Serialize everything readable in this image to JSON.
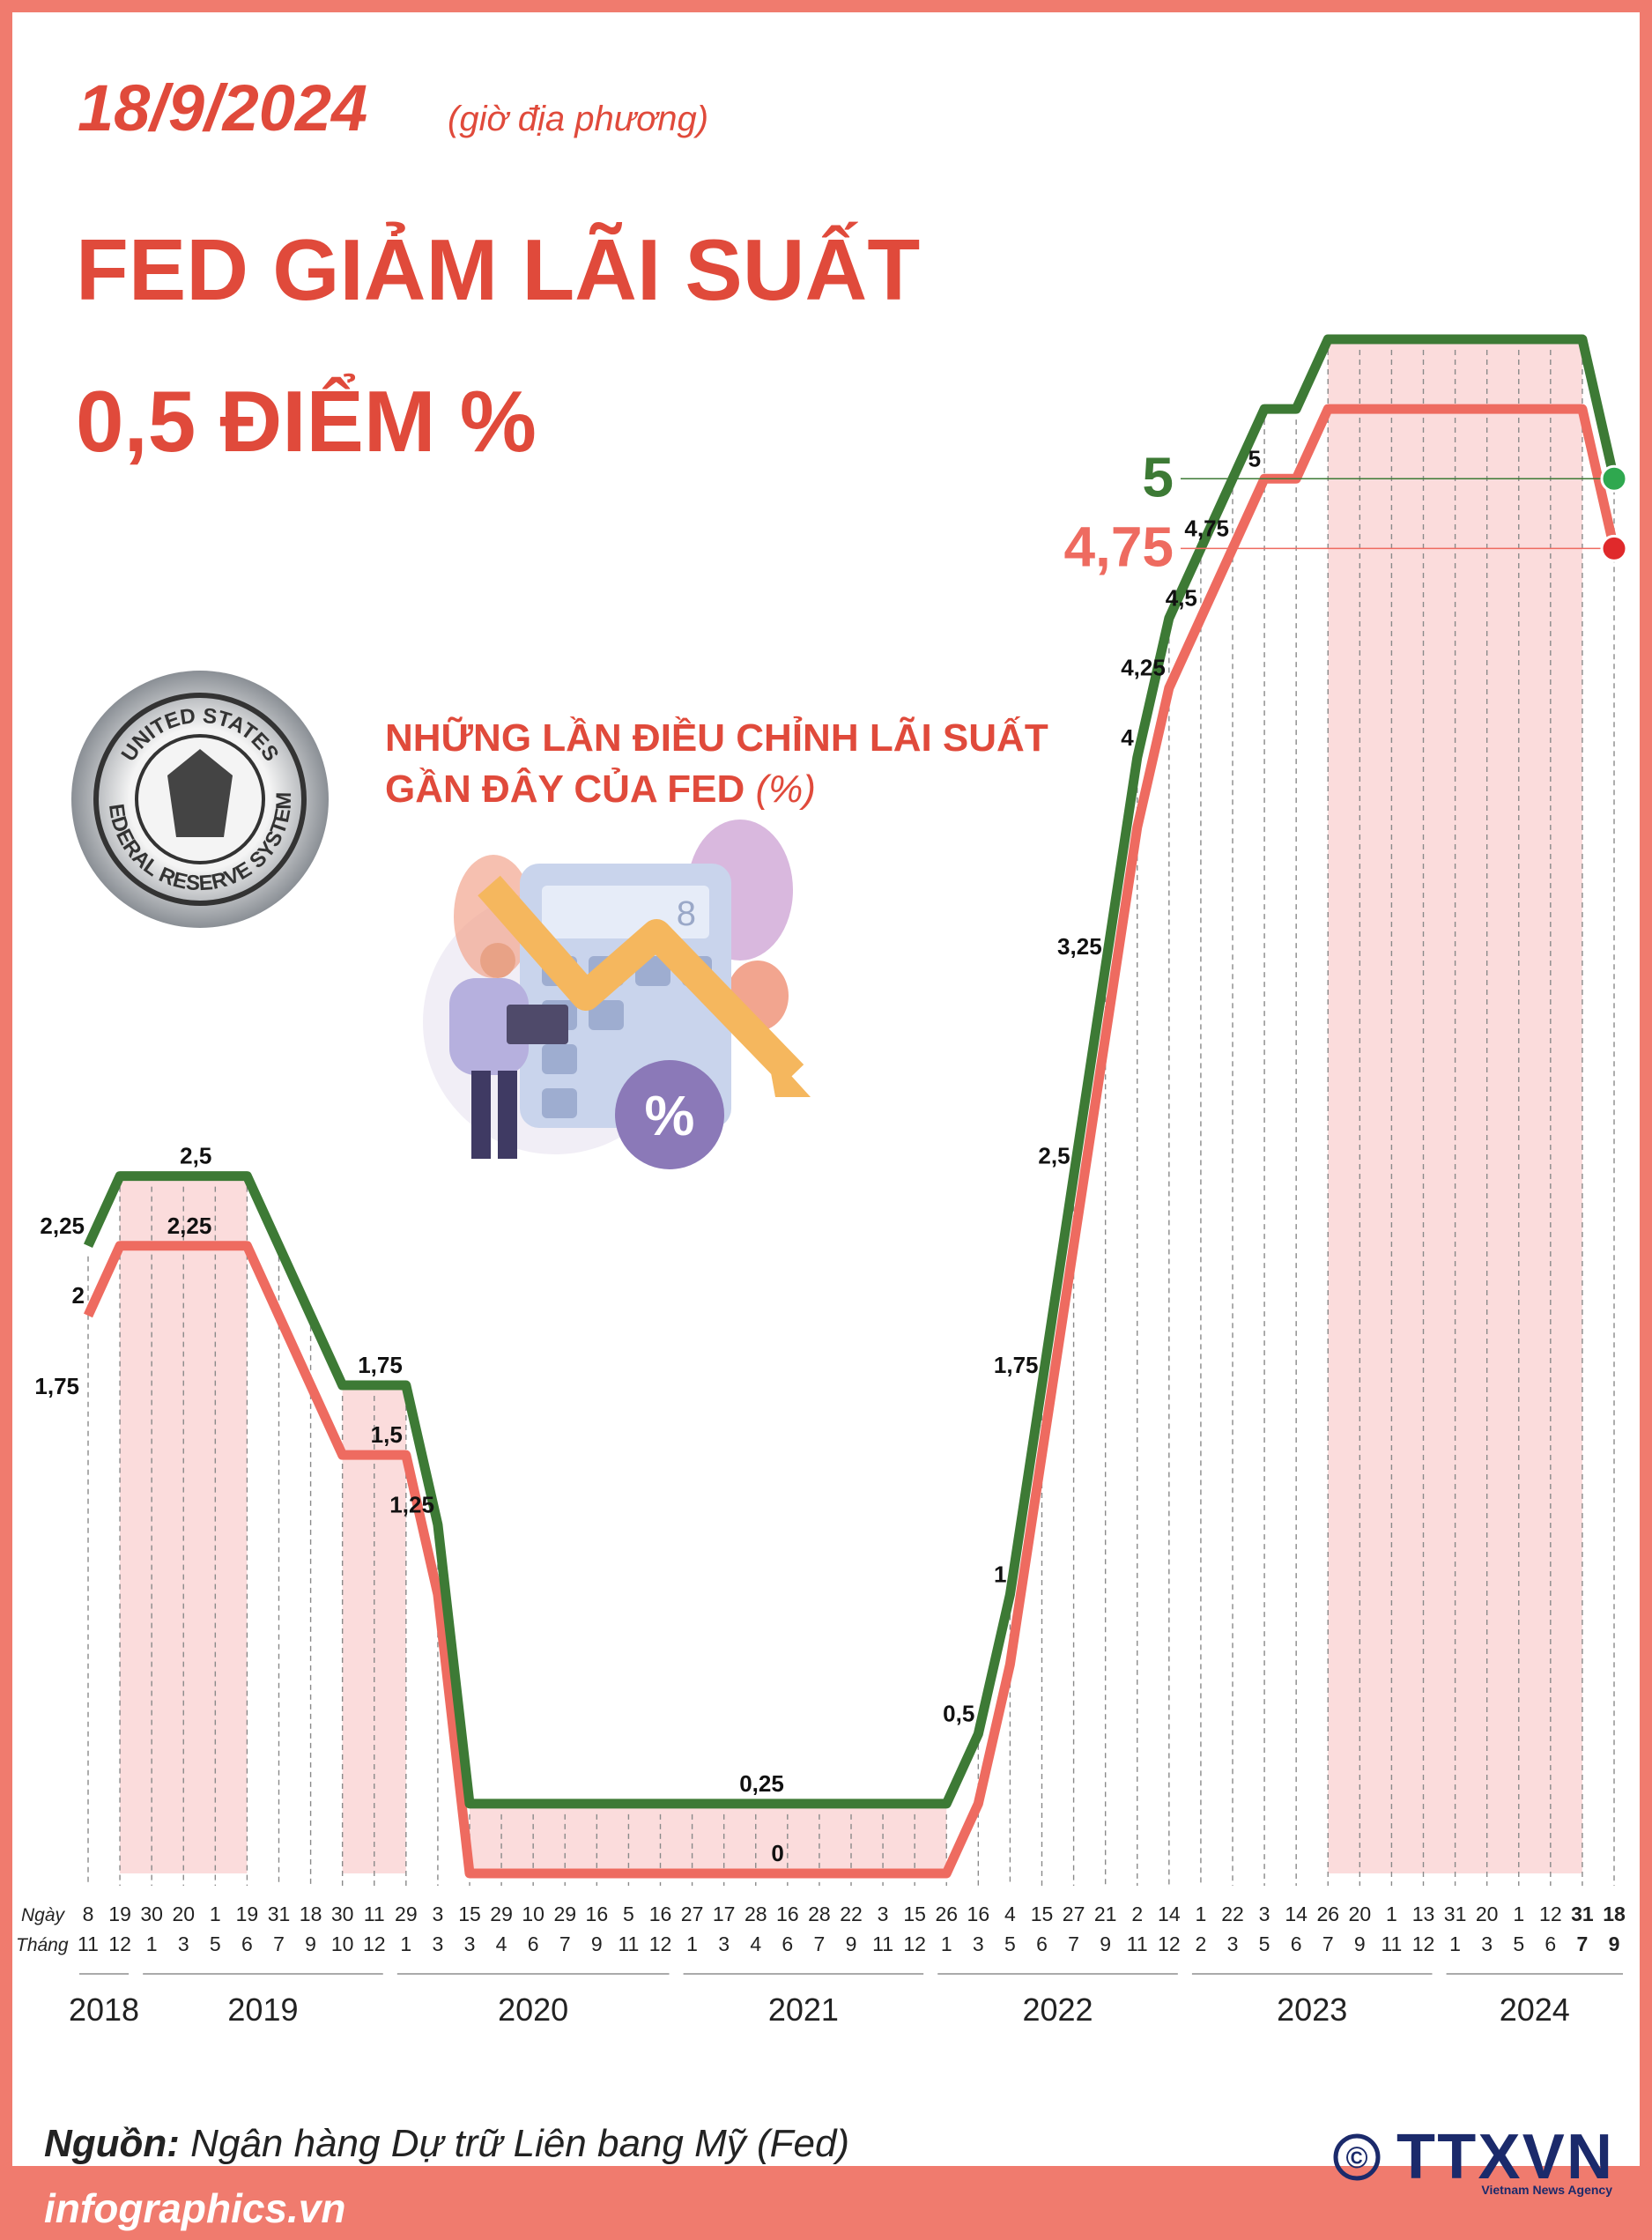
{
  "header": {
    "date": "18/9/2024",
    "date_note": "(giờ địa phương)",
    "title_line1": "FED GIẢM LÃI SUẤT",
    "title_line2": "0,5 ĐIỂM %"
  },
  "seal": {
    "top": "UNITED STATES",
    "bottom": "FEDERAL RESERVE SYSTEM"
  },
  "illustration": {
    "display": "8",
    "icon": "%"
  },
  "chart_data": {
    "type": "line",
    "title": "NHỮNG LẦN ĐIỀU CHỈNH LÃI SUẤT",
    "title_line2": "GẦN ĐÂY CỦA FED",
    "unit": "(%)",
    "day_label": "Ngày",
    "month_label": "Tháng",
    "days": [
      "8",
      "19",
      "30",
      "20",
      "1",
      "19",
      "31",
      "18",
      "30",
      "11",
      "29",
      "3",
      "15",
      "29",
      "10",
      "29",
      "16",
      "5",
      "16",
      "27",
      "17",
      "28",
      "16",
      "28",
      "22",
      "3",
      "15",
      "26",
      "16",
      "4",
      "15",
      "27",
      "21",
      "2",
      "14",
      "1",
      "22",
      "3",
      "14",
      "26",
      "20",
      "1",
      "13",
      "31",
      "20",
      "1",
      "12",
      "31",
      "18"
    ],
    "months": [
      "11",
      "12",
      "1",
      "3",
      "5",
      "6",
      "7",
      "9",
      "10",
      "12",
      "1",
      "3",
      "3",
      "4",
      "6",
      "7",
      "9",
      "11",
      "12",
      "1",
      "3",
      "4",
      "6",
      "7",
      "9",
      "11",
      "12",
      "1",
      "3",
      "5",
      "6",
      "7",
      "9",
      "11",
      "12",
      "2",
      "3",
      "5",
      "6",
      "7",
      "9",
      "11",
      "12",
      "1",
      "3",
      "5",
      "6",
      "7",
      "9"
    ],
    "years": [
      "2018",
      "2019",
      "2020",
      "2021",
      "2022",
      "2023",
      "2024"
    ],
    "ylim": [
      0,
      5.5
    ],
    "series": [
      {
        "color": "#3d7a35",
        "values": [
          2.25,
          2.5,
          2.5,
          2.5,
          2.5,
          2.5,
          2.25,
          2,
          1.75,
          1.75,
          1.75,
          1.25,
          0.25,
          0.25,
          0.25,
          0.25,
          0.25,
          0.25,
          0.25,
          0.25,
          0.25,
          0.25,
          0.25,
          0.25,
          0.25,
          0.25,
          0.25,
          0.25,
          0.5,
          1,
          1.75,
          2.5,
          3.25,
          4,
          4.5,
          4.75,
          5,
          5.25,
          5.25,
          5.5,
          5.5,
          5.5,
          5.5,
          5.5,
          5.5,
          5.5,
          5.5,
          5.5,
          5
        ],
        "value_labels": [
          "2,25",
          null,
          null,
          null,
          "2,5",
          null,
          null,
          null,
          null,
          null,
          "1,75",
          "1,25",
          null,
          null,
          null,
          null,
          null,
          null,
          null,
          null,
          null,
          null,
          "0,25",
          null,
          null,
          null,
          null,
          null,
          "0,5",
          "1",
          "1,75",
          "2,5",
          "3,25",
          "4",
          null,
          null,
          null,
          null,
          null,
          null,
          null,
          null,
          null,
          null,
          null,
          null,
          null,
          null,
          "5"
        ]
      },
      {
        "color": "#ee6b60",
        "values": [
          2,
          2.25,
          2.25,
          2.25,
          2.25,
          2.25,
          2,
          1.75,
          1.5,
          1.5,
          1.5,
          1,
          0,
          0,
          0,
          0,
          0,
          0,
          0,
          0,
          0,
          0,
          0,
          0,
          0,
          0,
          0,
          0,
          0.25,
          0.75,
          1.5,
          2.25,
          3,
          3.75,
          4.25,
          4.5,
          4.75,
          5,
          5,
          5.25,
          5.25,
          5.25,
          5.25,
          5.25,
          5.25,
          5.25,
          5.25,
          5.25,
          4.75
        ],
        "value_labels": [
          "2",
          null,
          null,
          null,
          "2,25",
          null,
          null,
          null,
          null,
          null,
          "1,5",
          null,
          null,
          null,
          null,
          null,
          null,
          null,
          null,
          null,
          null,
          null,
          "0",
          null,
          null,
          null,
          null,
          null,
          null,
          null,
          null,
          null,
          null,
          null,
          "4,25",
          "4,5",
          "4,75",
          "5",
          null,
          null,
          null,
          null,
          null,
          null,
          null,
          null,
          null,
          null,
          "4,75"
        ]
      }
    ],
    "annotations": [
      {
        "text": "1,75",
        "value": 1.75
      }
    ]
  },
  "footer": {
    "source_label": "Nguồn:",
    "source": "Ngân hàng Dự trữ Liên bang Mỹ (Fed)",
    "site": "infographics.vn",
    "copyright": "©",
    "logo": "TTXVN",
    "logo_sub": "Vietnam News Agency"
  }
}
